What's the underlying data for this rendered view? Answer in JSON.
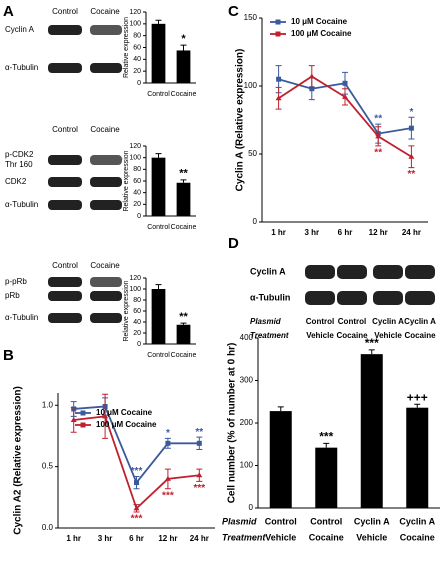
{
  "panel_labels": [
    "A",
    "B",
    "C",
    "D"
  ],
  "blots": [
    {
      "headers": [
        "Control",
        "Cocaine"
      ],
      "rows": [
        "Cyclin A",
        "α-Tubulin"
      ]
    },
    {
      "headers": [
        "Control",
        "Cocaine"
      ],
      "rows": [
        [
          "p-CDK2",
          "Thr 160"
        ],
        "CDK2",
        "α-Tubulin"
      ]
    },
    {
      "headers": [
        "Control",
        "Cocaine"
      ],
      "rows": [
        "p-pRb",
        "pRb",
        "α-Tubulin"
      ]
    },
    {
      "rows": [
        "Cyclin A",
        "α-Tubulin"
      ],
      "plasmid_label": "Plasmid",
      "treatment_label": "Treatment",
      "plasmid": [
        "Control",
        "Control",
        "Cyclin A",
        "Cyclin A"
      ],
      "treatment": [
        "Vehicle",
        "Cocaine",
        "Vehicle",
        "Cocaine"
      ]
    }
  ],
  "chart_data": [
    {
      "type": "bar",
      "y_label": "Relative expression",
      "categories": [
        "Control",
        "Cocaine"
      ],
      "values": [
        100,
        55
      ],
      "errors": [
        6,
        9
      ],
      "annotations": [
        null,
        "*"
      ],
      "color": "#000000",
      "ylim": [
        0,
        120
      ],
      "yticks": [
        0,
        20,
        40,
        60,
        80,
        100,
        120
      ]
    },
    {
      "type": "bar",
      "y_label": "Relative expression",
      "categories": [
        "Control",
        "Cocaine"
      ],
      "values": [
        100,
        57
      ],
      "errors": [
        7,
        5
      ],
      "annotations": [
        null,
        "**"
      ],
      "color": "#000000",
      "ylim": [
        0,
        120
      ],
      "yticks": [
        0,
        20,
        40,
        60,
        80,
        100,
        120
      ]
    },
    {
      "type": "bar",
      "y_label": "Relative expression",
      "categories": [
        "Control",
        "Cocaine"
      ],
      "values": [
        100,
        35
      ],
      "errors": [
        8,
        3
      ],
      "annotations": [
        null,
        "**"
      ],
      "color": "#000000",
      "ylim": [
        0,
        120
      ],
      "yticks": [
        0,
        20,
        40,
        60,
        80,
        100,
        120
      ]
    },
    {
      "type": "line",
      "y_label": "Cyclin A2 (Relative expression)",
      "categories": [
        "1 hr",
        "3 hr",
        "6 hr",
        "12 hr",
        "24 hr"
      ],
      "series": [
        {
          "name": "10 μM Cocaine",
          "color": "#3a5a9c",
          "values": [
            0.97,
            0.99,
            0.37,
            0.69,
            0.69
          ],
          "errors": [
            0.06,
            0.07,
            0.05,
            0.04,
            0.05
          ],
          "significance": [
            null,
            null,
            "***",
            "*",
            "**"
          ]
        },
        {
          "name": "100 μM Cocaine",
          "color": "#c0202e",
          "values": [
            0.88,
            0.91,
            0.16,
            0.4,
            0.43
          ],
          "errors": [
            0.1,
            0.18,
            0.03,
            0.08,
            0.05
          ],
          "significance": [
            null,
            null,
            "***",
            "***",
            "***"
          ]
        }
      ],
      "ylim": [
        0,
        1.1
      ],
      "yticks": [
        {
          "value": 0,
          "label": "0.0"
        },
        0.5,
        {
          "value": 1,
          "label": "1.0"
        }
      ]
    },
    {
      "type": "line",
      "y_label": "Cyclin A (Relative expression)",
      "categories": [
        "1 hr",
        "3 hr",
        "6 hr",
        "12 hr",
        "24 hr"
      ],
      "series": [
        {
          "name": "10 μM Cocaine",
          "color": "#3a5a9c",
          "values": [
            105,
            98,
            102,
            65,
            69
          ],
          "errors": [
            10,
            8,
            8,
            7,
            8
          ],
          "significance": [
            null,
            null,
            null,
            "**",
            "*"
          ]
        },
        {
          "name": "100 μM Cocaine",
          "color": "#c0202e",
          "values": [
            91,
            107,
            92,
            63,
            48
          ],
          "errors": [
            8,
            8,
            6,
            7,
            8
          ],
          "significance": [
            null,
            null,
            null,
            "**",
            "**"
          ]
        }
      ],
      "ylim": [
        0,
        150
      ],
      "yticks": [
        0,
        50,
        100,
        150
      ]
    },
    {
      "type": "bar",
      "y_label": "Cell number (% of number at 0 hr)",
      "row_labels": [
        "Plasmid",
        "Treatment"
      ],
      "categories": [
        [
          "Control",
          "Vehicle"
        ],
        [
          "Control",
          "Cocaine"
        ],
        [
          "Cyclin A",
          "Vehicle"
        ],
        [
          "Cyclin A",
          "Cocaine"
        ]
      ],
      "values": [
        228,
        142,
        362,
        236
      ],
      "errors": [
        10,
        10,
        10,
        8
      ],
      "annotations": [
        null,
        "***",
        "***",
        "+++"
      ],
      "color": "#000000",
      "ylim": [
        0,
        400
      ],
      "yticks": [
        0,
        100,
        200,
        300,
        400
      ]
    }
  ]
}
